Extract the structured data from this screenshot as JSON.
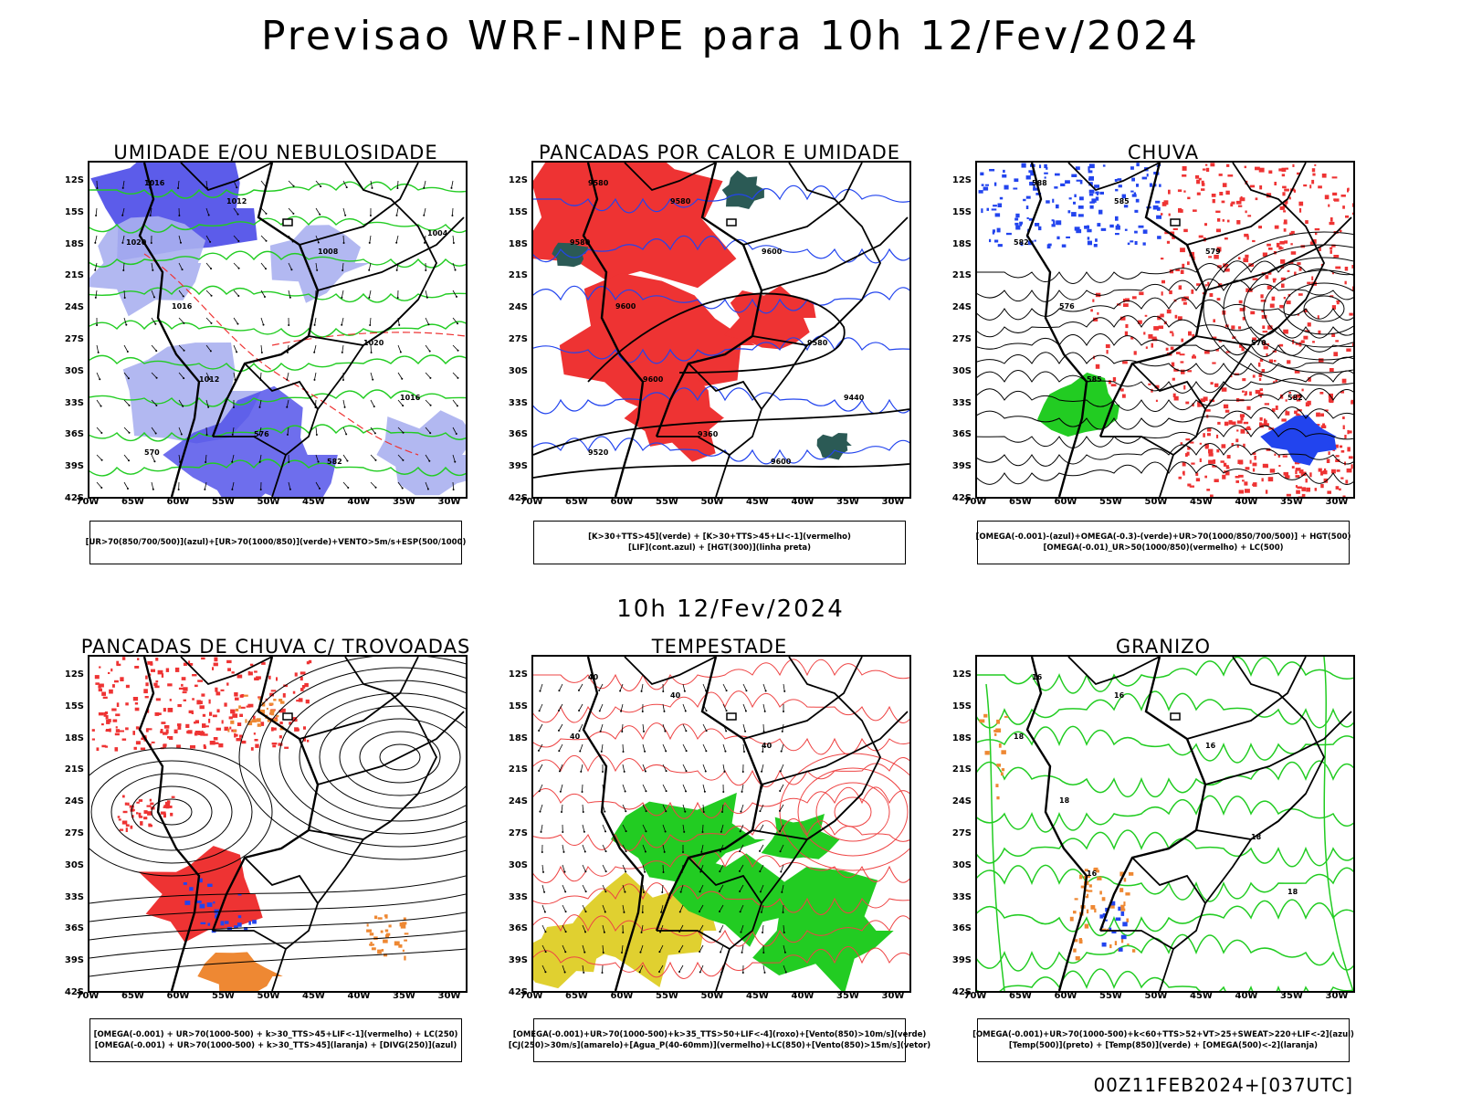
{
  "title": "Previsao WRF-INPE  para 10h 12/Fev/2024",
  "subtitle": "10h 12/Fev/2024",
  "footer": "00Z11FEB2024+[037UTC]",
  "lat_labels": [
    "12S",
    "15S",
    "18S",
    "21S",
    "24S",
    "27S",
    "30S",
    "33S",
    "36S",
    "39S",
    "42S"
  ],
  "lon_labels": [
    "70W",
    "65W",
    "60W",
    "55W",
    "50W",
    "45W",
    "40W",
    "35W",
    "30W"
  ],
  "panels": [
    {
      "id": "umidade",
      "title": "UMIDADE E/OU NEBULOSIDADE",
      "legend": [
        "[UR>70(850/700/500)](azul)+[UR>70(1000/850)](verde)+VENTO>5m/s+ESP(500/1000)"
      ],
      "colors": [
        "#4a4ae8",
        "#aab0f0",
        "#22cc22",
        "#ee3333"
      ],
      "contour_labels": [
        "1016",
        "1012",
        "1020",
        "1008",
        "1016",
        "1020",
        "1012",
        "1016",
        "576",
        "570",
        "582",
        "1004"
      ]
    },
    {
      "id": "pancadas-calor",
      "title": "PANCADAS POR CALOR E UMIDADE",
      "legend": [
        "[K>30+TTS>45](verde) + [K>30+TTS>45+LI<-1](vermelho)",
        "[LIF](cont.azul) + [HGT(300)](linha preta)"
      ],
      "colors": [
        "#ee3333",
        "#2b5a55",
        "#2244ee",
        "#000000"
      ],
      "contour_labels": [
        "9580",
        "9580",
        "9580",
        "9600",
        "9600",
        "9580",
        "9600",
        "9440",
        "9360",
        "9520",
        "9600"
      ]
    },
    {
      "id": "chuva",
      "title": "CHUVA",
      "legend": [
        "[OMEGA(-0.001)-(azul)+OMEGA(-0.3)-(verde)+UR>70(1000/850/700/500)] + HGT(500)",
        "[OMEGA(-0.01)_UR>50(1000/850)(vermelho) + LC(500)"
      ],
      "colors": [
        "#ee3333",
        "#2244ee",
        "#22cc22",
        "#000000"
      ],
      "contour_labels": [
        "588",
        "585",
        "582",
        "579",
        "576",
        "570",
        "585",
        "582"
      ]
    },
    {
      "id": "trovoadas",
      "title": "PANCADAS DE CHUVA C/ TROVOADAS",
      "legend": [
        "[OMEGA(-0.001) + UR>70(1000-500) + k>30_TTS>45+LIF<-1](vermelho) + LC(250)",
        "[OMEGA(-0.001) + UR>70(1000-500) + k>30_TTS>45](laranja) + [DIVG(250)](azul)"
      ],
      "colors": [
        "#ee3333",
        "#ee8833",
        "#2244ee",
        "#000000"
      ],
      "contour_labels": []
    },
    {
      "id": "tempestade",
      "title": "TEMPESTADE",
      "legend": [
        "[OMEGA(-0.001)+UR>70(1000-500)+k>35_TTS>50+LIF<-4](roxo)+[Vento(850)>10m/s](verde)",
        "[CJ(250)>30m/s](amarelo)+[Agua_P(40-60mm)](vermelho)+LC(850)+[Vento(850)>15m/s](vetor)"
      ],
      "colors": [
        "#22cc22",
        "#e0d030",
        "#ee4444",
        "#000000"
      ],
      "contour_labels": [
        "40",
        "40",
        "40",
        "40"
      ]
    },
    {
      "id": "granizo",
      "title": "GRANIZO",
      "legend": [
        "[OMEGA(-0.001)+UR>70(1000-500)+k<60+TTS>52+VT>25+SWEAT>220+LIF<-2](azul)",
        "[Temp(500)](preto) + [Temp(850)](verde) + [OMEGA(500)<-2](laranja)"
      ],
      "colors": [
        "#22cc22",
        "#ee8833",
        "#2244ee",
        "#000000"
      ],
      "contour_labels": [
        "16",
        "16",
        "18",
        "16",
        "18",
        "18",
        "16",
        "18"
      ]
    }
  ]
}
